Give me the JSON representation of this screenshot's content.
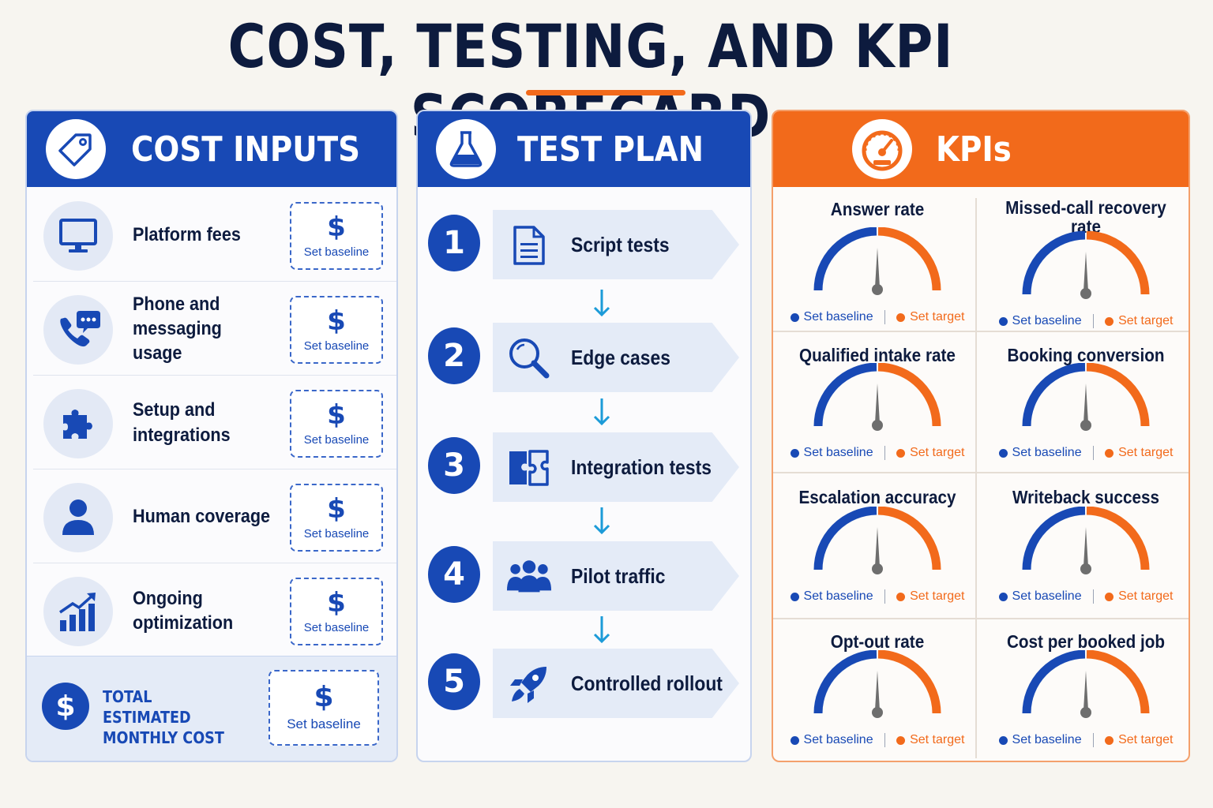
{
  "title": "COST, TESTING, AND KPI SCORECARD",
  "colors": {
    "navy": "#0d1b3e",
    "blue": "#1849b5",
    "orange": "#f26a1b",
    "light_blue": "#e4ebf7"
  },
  "cost_inputs": {
    "header": "COST INPUTS",
    "header_icon": "price-tag-icon",
    "items": [
      {
        "label": "Platform fees",
        "icon": "monitor-icon",
        "symbol": "$",
        "value": "Set baseline"
      },
      {
        "label": "Phone and messaging usage",
        "icon": "phone-chat-icon",
        "symbol": "$",
        "value": "Set baseline"
      },
      {
        "label": "Setup and integrations",
        "icon": "puzzle-icon",
        "symbol": "$",
        "value": "Set baseline"
      },
      {
        "label": "Human coverage",
        "icon": "person-icon",
        "symbol": "$",
        "value": "Set baseline"
      },
      {
        "label": "Ongoing optimization",
        "icon": "growth-chart-icon",
        "symbol": "$",
        "value": "Set baseline"
      }
    ],
    "total": {
      "label": "TOTAL ESTIMATED MONTHLY COST",
      "symbol": "$",
      "value": "Set baseline"
    }
  },
  "test_plan": {
    "header": "TEST PLAN",
    "header_icon": "flask-icon",
    "steps": [
      {
        "number": "1",
        "label": "Script tests",
        "icon": "document-icon"
      },
      {
        "number": "2",
        "label": "Edge cases",
        "icon": "magnifier-icon"
      },
      {
        "number": "3",
        "label": "Integration tests",
        "icon": "puzzle-icon"
      },
      {
        "number": "4",
        "label": "Pilot traffic",
        "icon": "people-icon"
      },
      {
        "number": "5",
        "label": "Controlled rollout",
        "icon": "rocket-icon"
      }
    ]
  },
  "kpis": {
    "header": "KPIs",
    "header_icon": "speedometer-icon",
    "baseline_label": "Set baseline",
    "target_label": "Set target",
    "items": [
      {
        "title": "Answer rate"
      },
      {
        "title": "Missed-call recovery rate"
      },
      {
        "title": "Qualified intake rate"
      },
      {
        "title": "Booking conversion"
      },
      {
        "title": "Escalation accuracy"
      },
      {
        "title": "Writeback success"
      },
      {
        "title": "Opt-out rate"
      },
      {
        "title": "Cost per booked job"
      }
    ]
  }
}
